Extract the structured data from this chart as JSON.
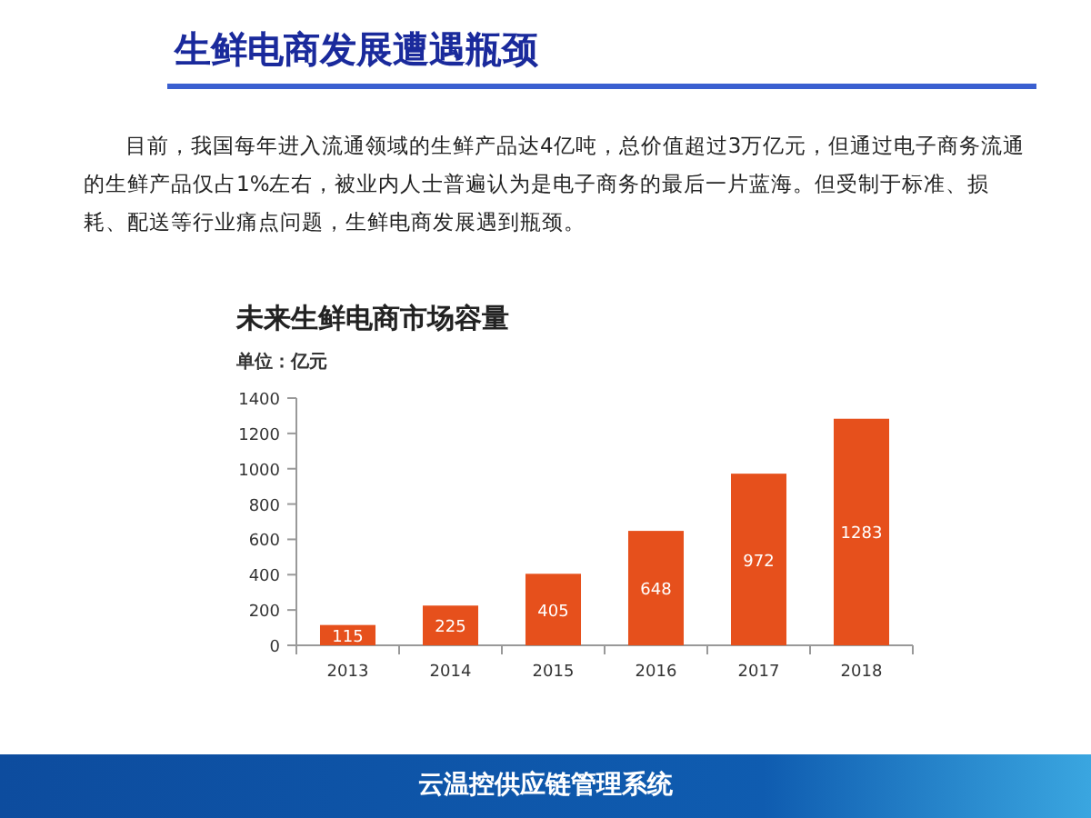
{
  "chart_data": {
    "type": "bar",
    "title": "未来生鲜电商市场容量",
    "subtitle": "单位：亿元",
    "annotations": [
      "生鲜电商发展遭遇瓶颈",
      "目前，我国每年进入流通领域的生鲜产品达4亿吨，总价值超过3万亿元，但通过电子商务流通的生鲜产品仅占1%左右，被业内人士普遍认为是电子商务的最后一片蓝海。但受制于标准、损耗、配送等行业痛点问题，生鲜电商发展遇到瓶颈。",
      "云温控供应链管理系统"
    ],
    "categories": [
      "2013",
      "2014",
      "2015",
      "2016",
      "2017",
      "2018"
    ],
    "values": [
      115,
      225,
      405,
      648,
      972,
      1283
    ],
    "color": "#e6501c",
    "ylim": [
      0,
      1400
    ],
    "yticks": [
      0,
      200,
      400,
      600,
      800,
      1000,
      1200,
      1400
    ],
    "data_labels": true
  }
}
